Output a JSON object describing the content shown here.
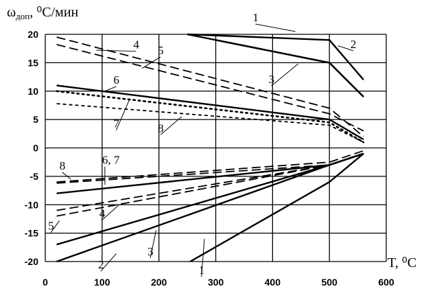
{
  "chart_data": {
    "type": "line",
    "ylabel": "ω",
    "ylabel_sub": "доп",
    "ylabel_units": ", ⁰С/мин",
    "xlabel": "T, ⁰C",
    "xlim": [
      0,
      600
    ],
    "ylim": [
      -20,
      20
    ],
    "x_ticks": [
      0,
      100,
      200,
      300,
      400,
      500,
      600
    ],
    "y_ticks": [
      20,
      15,
      10,
      5,
      0,
      -5,
      -10,
      -15,
      -20
    ],
    "grid": true,
    "series": [
      {
        "name": "1",
        "style": "solid",
        "branch": "upper",
        "x": [
          250,
          500,
          560
        ],
        "y": [
          20,
          19,
          12
        ]
      },
      {
        "name": "2",
        "style": "solid",
        "branch": "upper",
        "x": [
          250,
          500,
          560
        ],
        "y": [
          20,
          15,
          9
        ]
      },
      {
        "name": "3",
        "style": "solid",
        "branch": "upper",
        "x": [
          300,
          500,
          560
        ],
        "y": [
          19,
          15,
          9
        ]
      },
      {
        "name": "4",
        "style": "dashed",
        "branch": "upper",
        "x": [
          20,
          500,
          560
        ],
        "y": [
          19.5,
          7,
          2
        ]
      },
      {
        "name": "5",
        "style": "dashed",
        "branch": "upper",
        "x": [
          20,
          500,
          560
        ],
        "y": [
          18.2,
          6,
          3
        ]
      },
      {
        "name": "6",
        "style": "solid",
        "branch": "upper",
        "x": [
          20,
          500,
          560
        ],
        "y": [
          11,
          5,
          1.5
        ]
      },
      {
        "name": "7",
        "style": "dotted",
        "branch": "upper",
        "x": [
          20,
          500,
          560
        ],
        "y": [
          10,
          4.5,
          1
        ]
      },
      {
        "name": "8",
        "style": "short-dashed",
        "branch": "upper",
        "x": [
          20,
          500,
          560
        ],
        "y": [
          7.8,
          4,
          1
        ]
      },
      {
        "name": "1",
        "style": "solid",
        "branch": "lower",
        "x": [
          255,
          500,
          560
        ],
        "y": [
          -20,
          -6,
          -1
        ]
      },
      {
        "name": "2",
        "style": "solid",
        "branch": "lower",
        "x": [
          20,
          500,
          560
        ],
        "y": [
          -20,
          -3,
          -1
        ]
      },
      {
        "name": "3",
        "style": "solid",
        "branch": "lower",
        "x": [
          20,
          500,
          560
        ],
        "y": [
          -17,
          -3,
          -1
        ]
      },
      {
        "name": "4",
        "style": "dashed",
        "branch": "lower",
        "x": [
          20,
          500,
          560
        ],
        "y": [
          -11,
          -3,
          -1
        ]
      },
      {
        "name": "5",
        "style": "dashed",
        "branch": "lower",
        "x": [
          20,
          500,
          560
        ],
        "y": [
          -12,
          -3,
          -1
        ]
      },
      {
        "name": "6",
        "style": "solid",
        "branch": "lower",
        "x": [
          20,
          500,
          560
        ],
        "y": [
          -8,
          -3,
          -1
        ]
      },
      {
        "name": "7",
        "style": "dashed",
        "branch": "lower",
        "x": [
          20,
          500,
          560
        ],
        "y": [
          -6.2,
          -3,
          -1
        ]
      },
      {
        "name": "8",
        "style": "dashed",
        "branch": "lower",
        "x": [
          20,
          500,
          560
        ],
        "y": [
          -6,
          -2.5,
          -0.5
        ]
      }
    ],
    "annotations": [
      {
        "text": "1",
        "x": 365,
        "y": 22.3,
        "tx": 440,
        "ty": 20.5
      },
      {
        "text": "2",
        "x": 537,
        "y": 17.6,
        "tx": 515,
        "ty": 18
      },
      {
        "text": "3",
        "x": 393,
        "y": 11.4,
        "tx": 445,
        "ty": 14.8
      },
      {
        "text": "4",
        "x": 155,
        "y": 17.5,
        "tx": 90,
        "ty": 17.2
      },
      {
        "text": "5",
        "x": 198,
        "y": 16.5,
        "tx": 170,
        "ty": 14
      },
      {
        "text": "6",
        "x": 120,
        "y": 11.3,
        "tx": 105,
        "ty": 10
      },
      {
        "text": "7",
        "x": 120,
        "y": 3.6,
        "tx": 148,
        "ty": 8.5
      },
      {
        "text": "8",
        "x": 198,
        "y": 2.8,
        "tx": 240,
        "ty": 5.5
      },
      {
        "text": "8",
        "x": 25,
        "y": -3.8,
        "tx": 45,
        "ty": -5.5
      },
      {
        "text": "6, 7",
        "x": 100,
        "y": -2.8,
        "tx": 105,
        "ty": -6.5
      },
      {
        "text": "5",
        "x": 5,
        "y": -14.4,
        "tx": 25,
        "ty": -12.8
      },
      {
        "text": "4",
        "x": 95,
        "y": -12.2,
        "tx": 130,
        "ty": -10
      },
      {
        "text": "2",
        "x": 93,
        "y": -21.2,
        "tx": 125,
        "ty": -18.6
      },
      {
        "text": "3",
        "x": 180,
        "y": -18.9,
        "tx": 195,
        "ty": -14.5
      },
      {
        "text": "1",
        "x": 270,
        "y": -22.2,
        "tx": 280,
        "ty": -16
      }
    ]
  }
}
